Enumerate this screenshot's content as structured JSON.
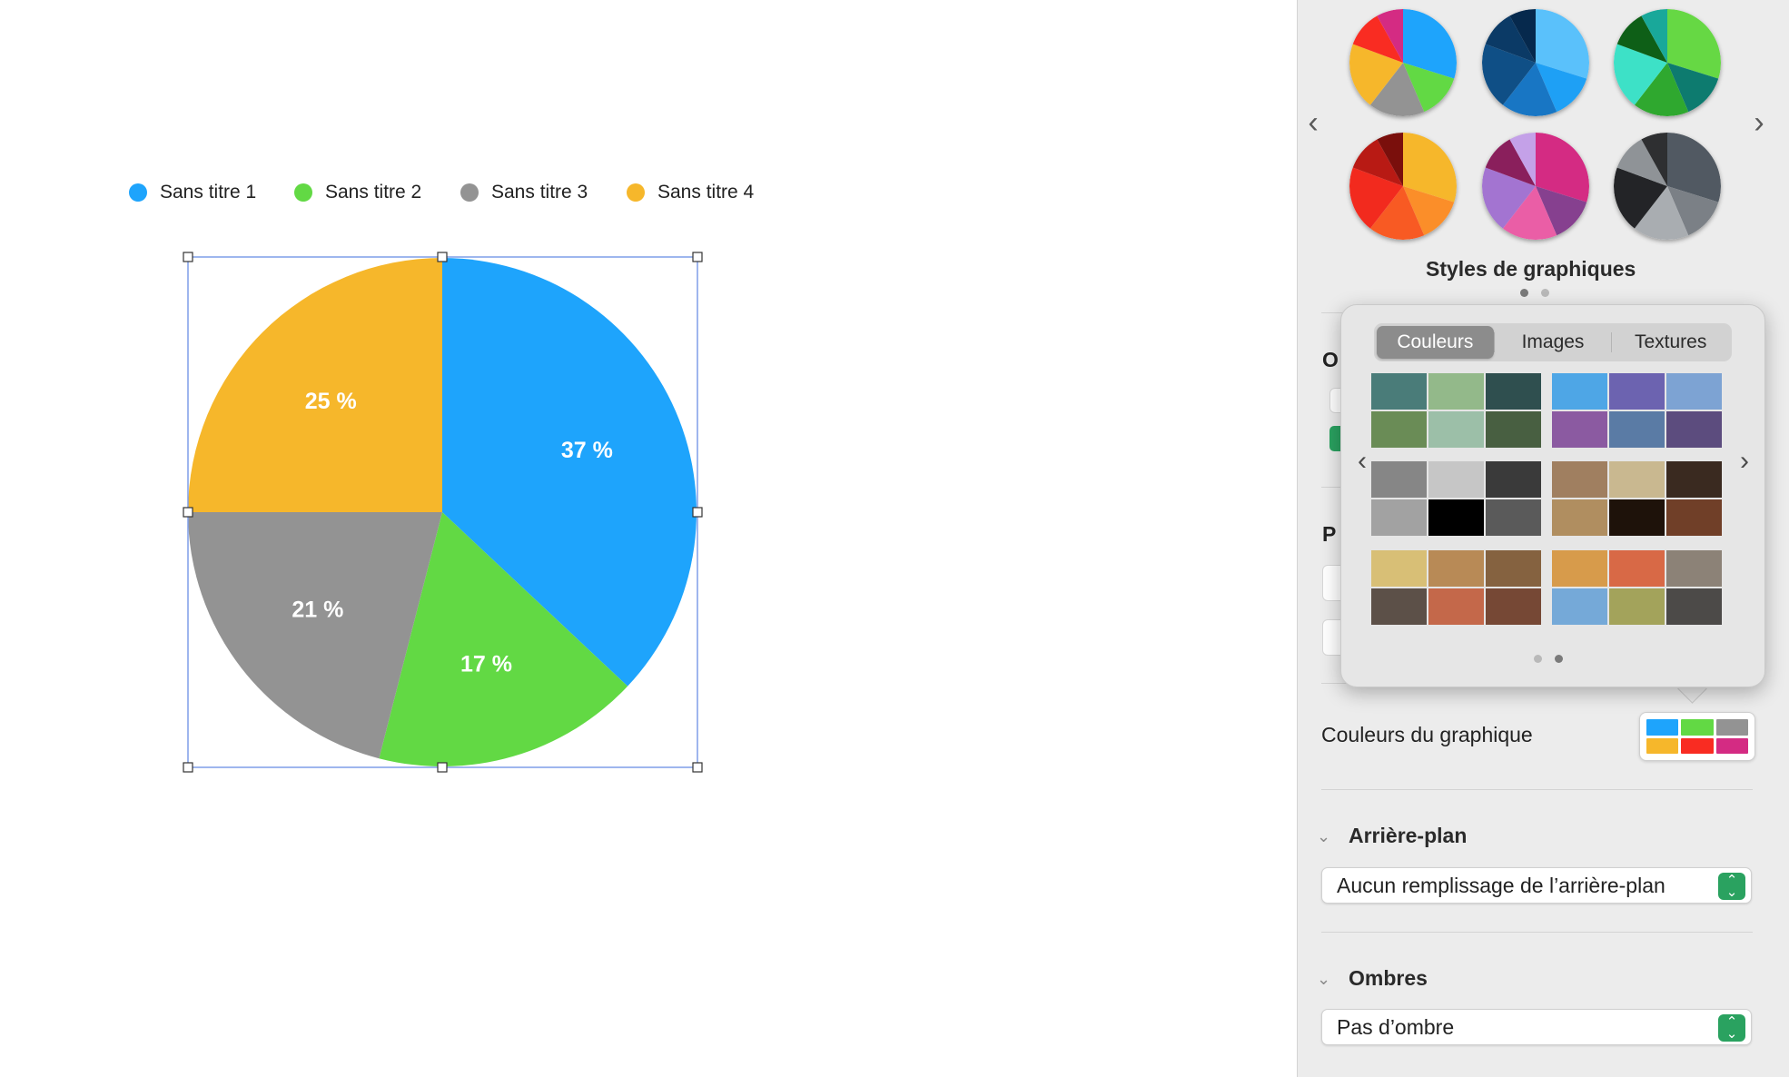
{
  "chart_data": {
    "type": "pie",
    "categories": [
      "Sans titre 1",
      "Sans titre 2",
      "Sans titre 3",
      "Sans titre 4"
    ],
    "values": [
      37,
      17,
      21,
      25
    ],
    "labels": [
      "37 %",
      "17 %",
      "21 %",
      "25 %"
    ],
    "colors": [
      "#1ea4fc",
      "#62d944",
      "#939393",
      "#f6b72b"
    ],
    "legend_position": "top"
  },
  "inspector": {
    "styles_title": "Styles de graphiques",
    "chart_colors_label": "Couleurs du graphique",
    "chart_colors_swatches": [
      "#1ea4fc",
      "#62d944",
      "#939393",
      "#f6b72b",
      "#f92c22",
      "#d42b83"
    ],
    "obscured_letters": [
      "O",
      "P"
    ],
    "background": {
      "title": "Arrière-plan",
      "value": "Aucun remplissage de l’arrière-plan"
    },
    "shadows": {
      "title": "Ombres",
      "value": "Pas d’ombre"
    }
  },
  "chart_styles": [
    {
      "icon": "chart-style-1-icon",
      "colors": [
        "#1ea4fc",
        "#62d944",
        "#939393",
        "#f6b72b",
        "#f92c22",
        "#d42b83"
      ]
    },
    {
      "icon": "chart-style-2-icon",
      "colors": [
        "#5ac1fb",
        "#1ea0f5",
        "#1876c4",
        "#0f4f86",
        "#0b3a66",
        "#06294d"
      ]
    },
    {
      "icon": "chart-style-3-icon",
      "colors": [
        "#66d844",
        "#0d7b6f",
        "#2fa82f",
        "#3de1c7",
        "#0e5f17",
        "#19a89a"
      ]
    },
    {
      "icon": "chart-style-4-icon",
      "colors": [
        "#f6b72b",
        "#fb8e29",
        "#f85a23",
        "#f22a1e",
        "#b81a14",
        "#7a0f0c"
      ]
    },
    {
      "icon": "chart-style-5-icon",
      "colors": [
        "#d42b83",
        "#86408f",
        "#ea5ea6",
        "#a374d1",
        "#8a1f5c",
        "#c4a1e8"
      ]
    },
    {
      "icon": "chart-style-6-icon",
      "colors": [
        "#515962",
        "#7b8086",
        "#a9adb1",
        "#232427",
        "#8f9397",
        "#2e2f31"
      ]
    }
  ],
  "popover": {
    "tabs": [
      "Couleurs",
      "Images",
      "Textures"
    ],
    "active_tab": "Couleurs",
    "palettes": [
      [
        "#4a7c79",
        "#93b98a",
        "#2f4f4f",
        "#6a8c56",
        "#9cbfa8",
        "#485f41"
      ],
      [
        "#4ea6e6",
        "#6c63b0",
        "#7da3d3",
        "#8b5aa1",
        "#5a7ba5",
        "#5c4c7e"
      ],
      [
        "#868686",
        "#c6c6c6",
        "#3a3a3a",
        "#a2a2a2",
        "#000000",
        "#5a5a5a"
      ],
      [
        "#a07f60",
        "#c9b890",
        "#3a2a20",
        "#b08e60",
        "#1e120a",
        "#703f28"
      ],
      [
        "#d8bf76",
        "#b88a56",
        "#856240",
        "#5c5048",
        "#c4684a",
        "#764835"
      ],
      [
        "#d79b4b",
        "#d86946",
        "#8c8277",
        "#75a9d8",
        "#a3a35b",
        "#4c4a48"
      ]
    ]
  }
}
